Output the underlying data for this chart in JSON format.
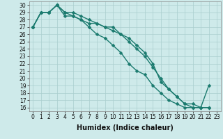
{
  "xlabel": "Humidex (Indice chaleur)",
  "ylabel": "",
  "bg_color": "#ceeaea",
  "grid_color": "#aacece",
  "line_color": "#1a7a6e",
  "xlim": [
    -0.5,
    23.5
  ],
  "ylim": [
    15.5,
    30.5
  ],
  "xticks": [
    0,
    1,
    2,
    3,
    4,
    5,
    6,
    7,
    8,
    9,
    10,
    11,
    12,
    13,
    14,
    15,
    16,
    17,
    18,
    19,
    20,
    21,
    22,
    23
  ],
  "yticks": [
    16,
    17,
    18,
    19,
    20,
    21,
    22,
    23,
    24,
    25,
    26,
    27,
    28,
    29,
    30
  ],
  "line1_x": [
    0,
    1,
    2,
    3,
    4,
    5,
    6,
    7,
    8,
    9,
    10,
    11,
    12,
    13,
    14,
    15,
    16,
    17,
    18,
    19,
    20,
    21,
    22
  ],
  "line1_y": [
    27,
    29,
    29,
    30,
    29,
    28.5,
    28,
    27.5,
    27.5,
    27,
    26.5,
    26,
    25,
    24,
    23,
    21.5,
    20,
    18.5,
    17.5,
    16.5,
    16.5,
    16,
    16
  ],
  "line2_x": [
    0,
    1,
    2,
    3,
    4,
    5,
    6,
    7,
    8,
    9,
    10,
    11,
    12,
    13,
    14,
    15,
    16,
    17,
    18,
    19,
    20,
    21,
    22
  ],
  "line2_y": [
    27,
    29,
    29,
    30,
    29,
    29,
    28.5,
    28,
    27.5,
    27,
    27,
    26,
    25.5,
    24.5,
    23.5,
    22,
    19.5,
    18.5,
    17.5,
    16.5,
    16,
    16,
    16
  ],
  "line3_x": [
    0,
    1,
    2,
    3,
    4,
    5,
    6,
    7,
    8,
    9,
    10,
    11,
    12,
    13,
    14,
    15,
    16,
    17,
    18,
    19,
    20,
    21,
    22
  ],
  "line3_y": [
    27,
    29,
    29,
    30,
    28.5,
    28.5,
    28,
    27,
    26,
    25.5,
    24.5,
    23.5,
    22,
    21,
    20.5,
    19,
    18,
    17,
    16.5,
    16,
    16,
    16,
    19
  ],
  "marker": "D",
  "markersize": 2.5,
  "linewidth": 1.0,
  "tick_fontsize": 5.5,
  "xlabel_fontsize": 7
}
